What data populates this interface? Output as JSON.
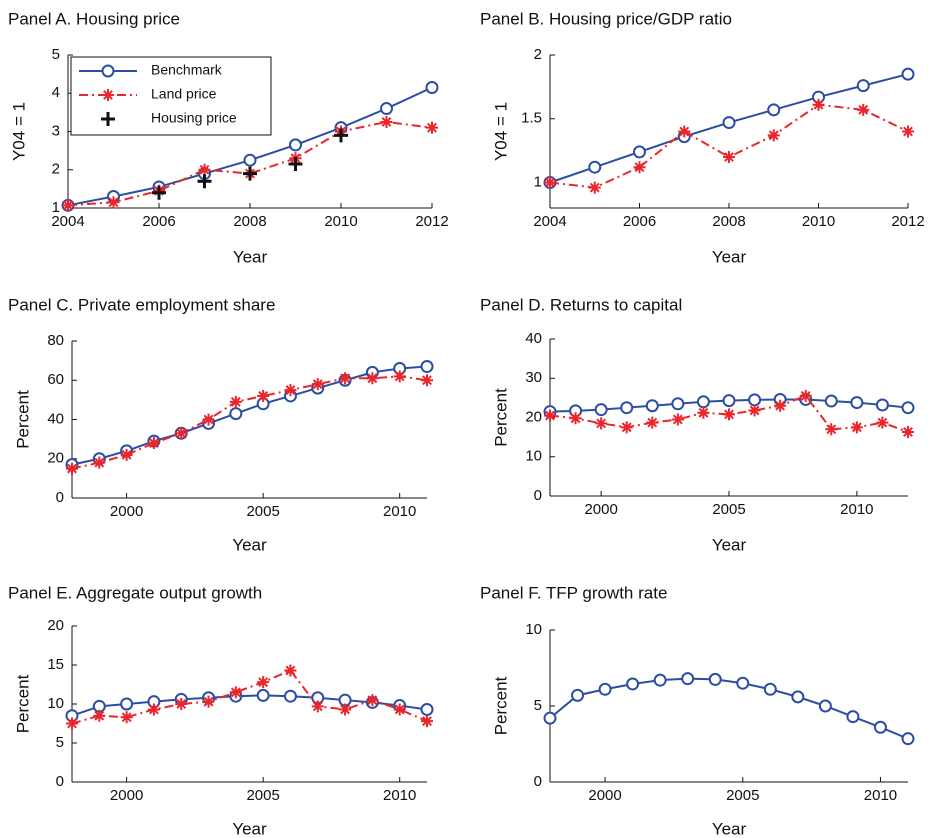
{
  "chart_data": [
    {
      "type": "line",
      "title": "Panel A. Housing price",
      "xlabel": "Year",
      "ylabel": "Y04 = 1",
      "x": [
        2004,
        2005,
        2006,
        2007,
        2008,
        2009,
        2010,
        2011,
        2012
      ],
      "xlim": [
        2004,
        2012
      ],
      "xticks": [
        2004,
        2006,
        2008,
        2010,
        2012
      ],
      "ylim": [
        1,
        5
      ],
      "yticks": [
        1,
        2,
        3,
        4,
        5
      ],
      "legend": "upper left",
      "series": [
        {
          "name": "Benchmark",
          "color": "#2b4ea2",
          "marker": "o",
          "linestyle": "solid",
          "values": [
            1.07,
            1.3,
            1.55,
            1.9,
            2.25,
            2.65,
            3.1,
            3.6,
            4.15
          ]
        },
        {
          "name": "Land price",
          "color": "#e8262b",
          "marker": "*",
          "linestyle": "dashdot",
          "values": [
            1.07,
            1.15,
            1.45,
            2.0,
            1.9,
            2.3,
            3.0,
            3.25,
            3.1
          ]
        },
        {
          "name": "Housing price",
          "color": "#111111",
          "marker": "+",
          "linestyle": "none",
          "values": [
            null,
            null,
            1.4,
            1.7,
            1.9,
            2.15,
            2.9,
            null,
            null
          ]
        }
      ]
    },
    {
      "type": "line",
      "title": "Panel B. Housing price/GDP ratio",
      "xlabel": "Year",
      "ylabel": "Y04 = 1",
      "x": [
        2004,
        2005,
        2006,
        2007,
        2008,
        2009,
        2010,
        2011,
        2012
      ],
      "xlim": [
        2004,
        2012
      ],
      "xticks": [
        2004,
        2006,
        2008,
        2010,
        2012
      ],
      "ylim": [
        0.8,
        2
      ],
      "yticks": [
        1,
        1.5,
        2
      ],
      "series": [
        {
          "name": "Benchmark",
          "color": "#2b4ea2",
          "marker": "o",
          "linestyle": "solid",
          "values": [
            1.0,
            1.12,
            1.24,
            1.36,
            1.47,
            1.57,
            1.67,
            1.76,
            1.85
          ]
        },
        {
          "name": "Land price",
          "color": "#e8262b",
          "marker": "*",
          "linestyle": "dashdot",
          "values": [
            1.0,
            0.96,
            1.12,
            1.4,
            1.2,
            1.37,
            1.61,
            1.57,
            1.4
          ]
        }
      ]
    },
    {
      "type": "line",
      "title": "Panel C. Private employment share",
      "xlabel": "Year",
      "ylabel": "Percent",
      "x": [
        1998,
        1999,
        2000,
        2001,
        2002,
        2003,
        2004,
        2005,
        2006,
        2007,
        2008,
        2009,
        2010,
        2011
      ],
      "xlim": [
        1998,
        2011
      ],
      "xticks": [
        2000,
        2005,
        2010
      ],
      "ylim": [
        0,
        80
      ],
      "yticks": [
        0,
        20,
        40,
        60,
        80
      ],
      "series": [
        {
          "name": "Benchmark",
          "color": "#2b4ea2",
          "marker": "o",
          "linestyle": "solid",
          "values": [
            17,
            20,
            24,
            29,
            33,
            38,
            43,
            48,
            52,
            56,
            60,
            64,
            66,
            67
          ]
        },
        {
          "name": "Land price",
          "color": "#e8262b",
          "marker": "*",
          "linestyle": "dashdot",
          "values": [
            15,
            18,
            22,
            28,
            33,
            40,
            49,
            52,
            55,
            58,
            61,
            61,
            62,
            60
          ]
        }
      ]
    },
    {
      "type": "line",
      "title": "Panel D. Returns to capital",
      "xlabel": "Year",
      "ylabel": "Percent",
      "x": [
        1998,
        1999,
        2000,
        2001,
        2002,
        2003,
        2004,
        2005,
        2006,
        2007,
        2008,
        2009,
        2010,
        2011,
        2012
      ],
      "xlim": [
        1998,
        2012
      ],
      "xticks": [
        2000,
        2005,
        2010
      ],
      "ylim": [
        0,
        40
      ],
      "yticks": [
        0,
        10,
        20,
        30,
        40
      ],
      "series": [
        {
          "name": "Benchmark",
          "color": "#2b4ea2",
          "marker": "o",
          "linestyle": "solid",
          "values": [
            21.5,
            21.7,
            22,
            22.5,
            23,
            23.5,
            24,
            24.3,
            24.5,
            24.6,
            24.6,
            24.2,
            23.8,
            23.2,
            22.5
          ]
        },
        {
          "name": "Land price",
          "color": "#e8262b",
          "marker": "*",
          "linestyle": "dashdot",
          "values": [
            20.5,
            19.8,
            18.5,
            17.5,
            18.7,
            19.5,
            21.2,
            20.8,
            21.8,
            23,
            25.5,
            17,
            17.5,
            18.7,
            16.3
          ]
        }
      ]
    },
    {
      "type": "line",
      "title": "Panel E. Aggregate output growth",
      "xlabel": "Year",
      "ylabel": "Percent",
      "x": [
        1998,
        1999,
        2000,
        2001,
        2002,
        2003,
        2004,
        2005,
        2006,
        2007,
        2008,
        2009,
        2010,
        2011
      ],
      "xlim": [
        1998,
        2011
      ],
      "xticks": [
        2000,
        2005,
        2010
      ],
      "ylim": [
        0,
        20
      ],
      "yticks": [
        0,
        5,
        10,
        15,
        20
      ],
      "series": [
        {
          "name": "Benchmark",
          "color": "#2b4ea2",
          "marker": "o",
          "linestyle": "solid",
          "values": [
            8.5,
            9.7,
            10,
            10.3,
            10.6,
            10.8,
            11,
            11.1,
            11,
            10.8,
            10.5,
            10.2,
            9.8,
            9.3
          ]
        },
        {
          "name": "Land price",
          "color": "#e8262b",
          "marker": "*",
          "linestyle": "dashdot",
          "values": [
            7.5,
            8.5,
            8.3,
            9.3,
            10,
            10.3,
            11.5,
            12.8,
            14.3,
            9.7,
            9.3,
            10.5,
            9.3,
            7.8
          ]
        }
      ]
    },
    {
      "type": "line",
      "title": "Panel F. TFP growth rate",
      "xlabel": "Year",
      "ylabel": "Percent",
      "x": [
        1998,
        1999,
        2000,
        2001,
        2002,
        2003,
        2004,
        2005,
        2006,
        2007,
        2008,
        2009,
        2010,
        2011
      ],
      "xlim": [
        1998,
        2011
      ],
      "xticks": [
        2000,
        2005,
        2010
      ],
      "ylim": [
        0,
        10
      ],
      "yticks": [
        0,
        5,
        10
      ],
      "series": [
        {
          "name": "Benchmark",
          "color": "#2b4ea2",
          "marker": "o",
          "linestyle": "solid",
          "values": [
            4.2,
            5.7,
            6.1,
            6.45,
            6.7,
            6.8,
            6.75,
            6.5,
            6.1,
            5.6,
            5.0,
            4.3,
            3.6,
            2.85
          ]
        }
      ]
    }
  ]
}
